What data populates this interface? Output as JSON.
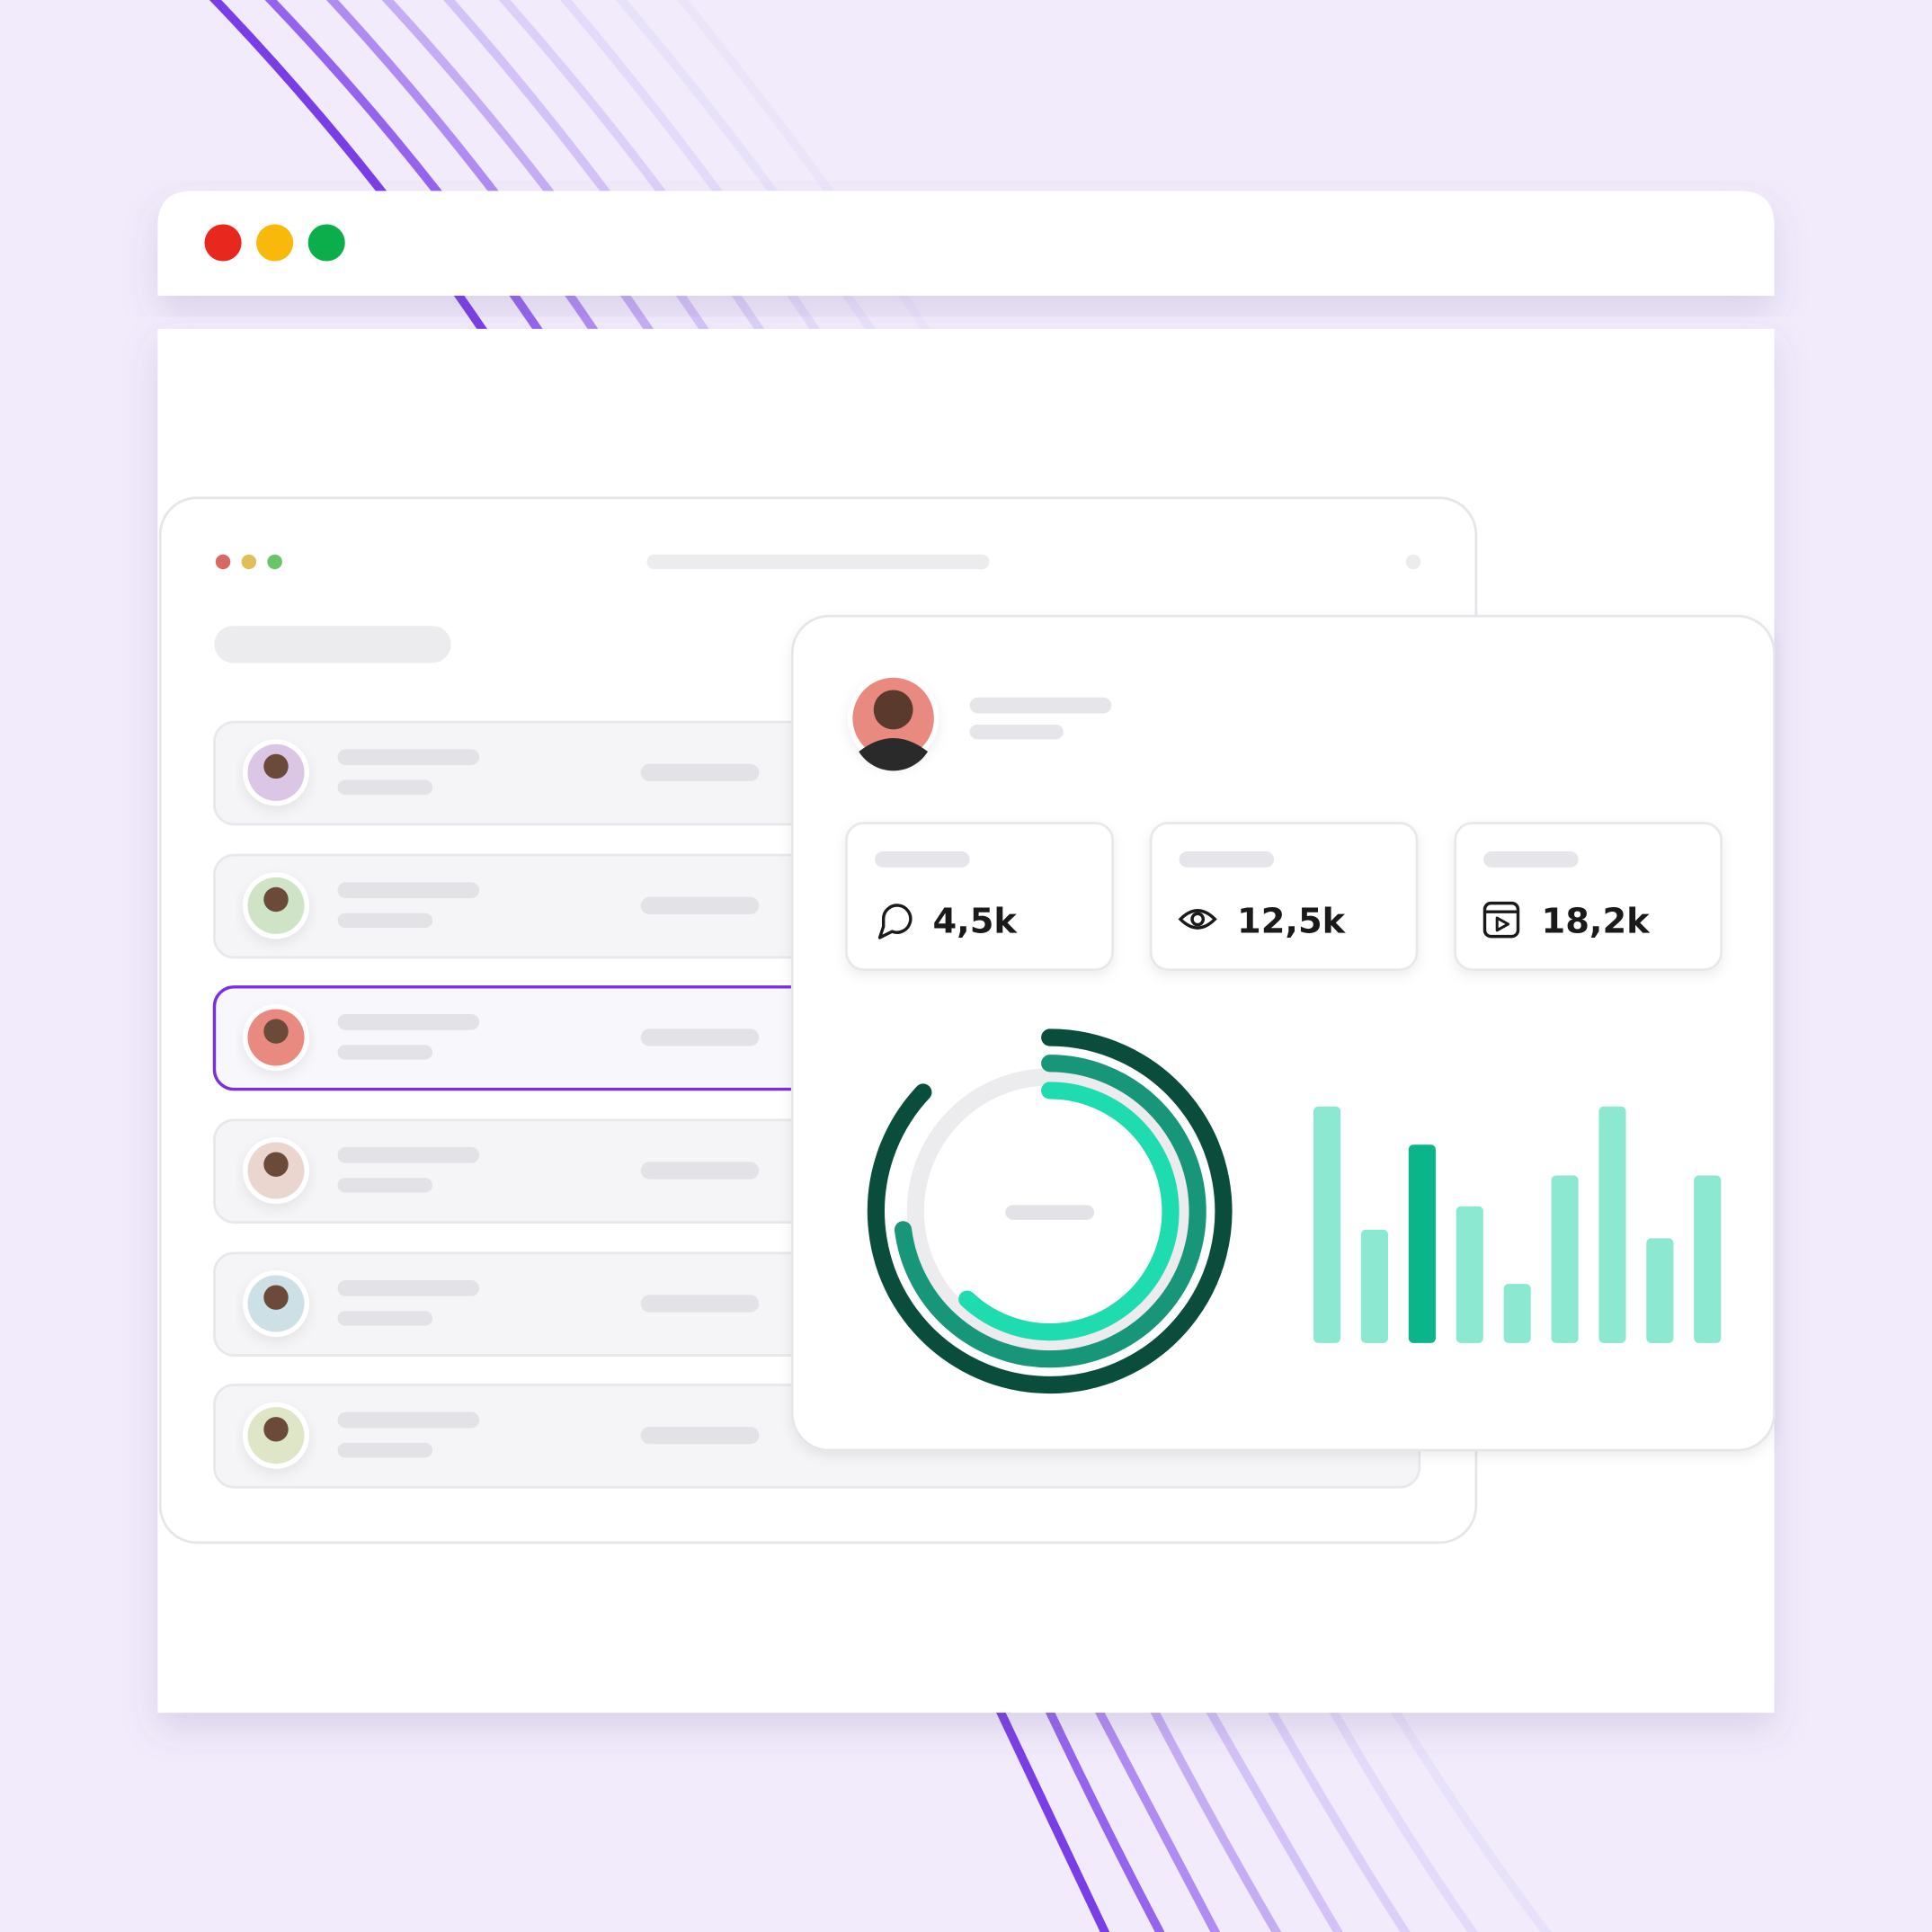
{
  "stats": [
    {
      "label": "4,5k",
      "icon": "chat"
    },
    {
      "label": "12,5k",
      "icon": "eye"
    },
    {
      "label": "18,2k",
      "icon": "video"
    }
  ],
  "rings": {
    "values": [
      87,
      73,
      62
    ],
    "colors": [
      "#0b4d3d",
      "#17967a",
      "#1fdcb0"
    ]
  },
  "bars": {
    "values": [
      192,
      92,
      161,
      111,
      48,
      136,
      192,
      85,
      136
    ],
    "colors": [
      "#8de8d1",
      "#8de8d1",
      "#0ab58a",
      "#8de8d1",
      "#8de8d1",
      "#8de8d1",
      "#8de8d1",
      "#8de8d1",
      "#8de8d1"
    ]
  }
}
